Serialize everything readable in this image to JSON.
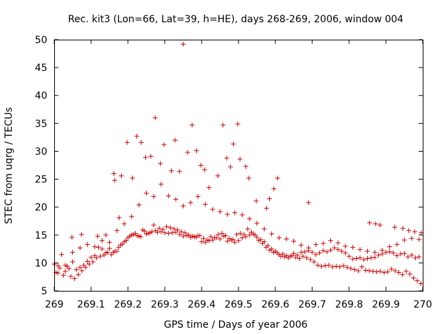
{
  "chart_data": {
    "type": "scatter",
    "title": "Rec. kit3 (Lon=66, Lat=39, h=HE), days 268-269, 2006, window 004",
    "xlabel": "GPS time / Days of year 2006",
    "ylabel": "STEC from uqrg / TECUs",
    "xlim": [
      269,
      270
    ],
    "ylim": [
      5,
      50
    ],
    "xticks": [
      "269",
      "269.1",
      "269.2",
      "269.3",
      "269.4",
      "269.5",
      "269.6",
      "269.7",
      "269.8",
      "269.9",
      "270"
    ],
    "yticks": [
      "5",
      "10",
      "15",
      "20",
      "25",
      "30",
      "35",
      "40",
      "45",
      "50"
    ],
    "grid": false,
    "marker": "plus",
    "color": "#cc0000",
    "series": [
      {
        "x": [
          269.0,
          269.01,
          269.02,
          269.03,
          269.04,
          269.05,
          269.06,
          269.07,
          269.08,
          269.09,
          269.1,
          269.11,
          269.12,
          269.13,
          269.14,
          269.15,
          269.16,
          269.17,
          269.18,
          269.19,
          269.2,
          269.21,
          269.22,
          269.23,
          269.24,
          269.25,
          269.26,
          269.27,
          269.28,
          269.29,
          269.3,
          269.31,
          269.32,
          269.33,
          269.34,
          269.35,
          269.36,
          269.37,
          269.38,
          269.39,
          269.4,
          269.41,
          269.42,
          269.43,
          269.44,
          269.45,
          269.46,
          269.47,
          269.48,
          269.49,
          269.5,
          269.51,
          269.52,
          269.53,
          269.54,
          269.55,
          269.56,
          269.57,
          269.58,
          269.59,
          269.6,
          269.61,
          269.62,
          269.63,
          269.64,
          269.65,
          269.66,
          269.67,
          269.68,
          269.69,
          269.7,
          269.71,
          269.72,
          269.73,
          269.74,
          269.75,
          269.76,
          269.77,
          269.78,
          269.79,
          269.8,
          269.81,
          269.82,
          269.83,
          269.84,
          269.85,
          269.86,
          269.87,
          269.88,
          269.89,
          269.9,
          269.91,
          269.92,
          269.93,
          269.94,
          269.95,
          269.96,
          269.97,
          269.98,
          269.99,
          269.005,
          269.015,
          269.025,
          269.035,
          269.045,
          269.055,
          269.065,
          269.075,
          269.085,
          269.095,
          269.105,
          269.115,
          269.125,
          269.135,
          269.145,
          269.155,
          269.165,
          269.175,
          269.185,
          269.195,
          269.205,
          269.215,
          269.225,
          269.235,
          269.245,
          269.255,
          269.265,
          269.275,
          269.285,
          269.295,
          269.305,
          269.315,
          269.325,
          269.335,
          269.345,
          269.355,
          269.365,
          269.375,
          269.385,
          269.395,
          269.405,
          269.415,
          269.425,
          269.435,
          269.445,
          269.455,
          269.465,
          269.475,
          269.485,
          269.495,
          269.505,
          269.515,
          269.525,
          269.535,
          269.545,
          269.555,
          269.565,
          269.575,
          269.585,
          269.595,
          269.605,
          269.615,
          269.625,
          269.635,
          269.645,
          269.655,
          269.665,
          269.675,
          269.685,
          269.695,
          269.705,
          269.715,
          269.725,
          269.735,
          269.745,
          269.755,
          269.765,
          269.775,
          269.785,
          269.795,
          269.805,
          269.815,
          269.825,
          269.835,
          269.845,
          269.855,
          269.865,
          269.875,
          269.885,
          269.895,
          269.905,
          269.915,
          269.925,
          269.935,
          269.945,
          269.955,
          269.965,
          269.975,
          269.985,
          269.995,
          269.01,
          269.03,
          269.05,
          269.07,
          269.09,
          269.11,
          269.13,
          269.15,
          269.17,
          269.19,
          269.21,
          269.23,
          269.25,
          269.27,
          269.29,
          269.31,
          269.33,
          269.35,
          269.37,
          269.39,
          269.41,
          269.43,
          269.45,
          269.47,
          269.49,
          269.51,
          269.53,
          269.55,
          269.57,
          269.59,
          269.61,
          269.63,
          269.65,
          269.67,
          269.69,
          269.71,
          269.73,
          269.75,
          269.77,
          269.79,
          269.81,
          269.83,
          269.85,
          269.87,
          269.89,
          269.91,
          269.93,
          269.95,
          269.97,
          269.99,
          269.162,
          269.182,
          269.198,
          269.212,
          269.224,
          269.236,
          269.248,
          269.262,
          269.274,
          269.288,
          269.298,
          269.318,
          269.328,
          269.34,
          269.35,
          269.362,
          269.374,
          269.386,
          269.398,
          269.408,
          269.42,
          269.444,
          269.458,
          269.468,
          269.478,
          269.486,
          269.498,
          269.504,
          269.52,
          269.528,
          269.548,
          269.576,
          269.584,
          269.596,
          269.606,
          269.69,
          269.856,
          269.872,
          269.884,
          269.924,
          269.946,
          269.962,
          269.978,
          269.996,
          269.048,
          269.074,
          269.118,
          269.14,
          269.164,
          269.176
        ],
        "y": [
          9.8,
          8.2,
          11.5,
          8.5,
          9.0,
          11.9,
          8.8,
          9.2,
          9.6,
          10.3,
          11.0,
          11.3,
          12.8,
          12.5,
          11.8,
          12.6,
          11.9,
          12.1,
          13.2,
          13.8,
          14.5,
          15.0,
          15.3,
          14.8,
          15.9,
          15.2,
          15.4,
          16.8,
          15.5,
          15.6,
          15.4,
          15.3,
          15.4,
          15.5,
          15.1,
          14.8,
          14.9,
          14.6,
          14.7,
          14.9,
          13.8,
          13.7,
          14.0,
          14.1,
          14.5,
          14.3,
          14.8,
          13.9,
          14.1,
          13.7,
          14.0,
          14.5,
          14.7,
          15.0,
          15.2,
          14.6,
          14.2,
          13.8,
          13.1,
          12.5,
          12.1,
          11.5,
          11.6,
          11.3,
          11.2,
          11.7,
          11.4,
          11.9,
          12.0,
          12.2,
          11.9,
          11.5,
          11.8,
          12.2,
          12.0,
          12.3,
          12.7,
          12.4,
          12.1,
          11.8,
          11.2,
          10.7,
          10.8,
          10.9,
          10.6,
          10.8,
          10.9,
          11.0,
          11.4,
          11.6,
          11.9,
          12.0,
          11.8,
          11.3,
          11.6,
          11.7,
          11.1,
          11.4,
          10.9,
          11.1,
          8.3,
          9.1,
          7.8,
          9.4,
          7.6,
          7.2,
          7.9,
          8.6,
          9.2,
          9.8,
          10.2,
          10.9,
          11.2,
          11.4,
          11.9,
          11.5,
          12.1,
          12.8,
          13.4,
          14.0,
          14.8,
          15.1,
          14.9,
          14.7,
          15.7,
          15.3,
          15.6,
          15.8,
          16.2,
          16.0,
          16.5,
          16.3,
          16.1,
          15.9,
          15.6,
          15.4,
          15.0,
          14.8,
          14.6,
          14.9,
          14.4,
          14.1,
          14.7,
          14.5,
          15.1,
          15.3,
          14.9,
          14.4,
          14.2,
          15.1,
          15.3,
          15.1,
          16.1,
          15.5,
          15.0,
          14.0,
          13.5,
          12.8,
          12.3,
          11.9,
          11.8,
          11.2,
          11.1,
          10.9,
          11.3,
          11.0,
          10.8,
          11.2,
          10.9,
          10.6,
          10.2,
          9.6,
          9.4,
          9.5,
          9.6,
          9.3,
          9.4,
          9.3,
          9.5,
          9.2,
          9.0,
          8.8,
          8.6,
          9.3,
          8.7,
          8.6,
          8.5,
          8.4,
          8.5,
          8.3,
          8.4,
          8.9,
          8.6,
          8.3,
          7.9,
          8.5,
          8.0,
          7.3,
          6.8,
          6.3,
          9.5,
          9.6,
          10.2,
          12.7,
          13.3,
          12.9,
          14.0,
          13.7,
          15.8,
          17.0,
          18.3,
          20.4,
          22.5,
          21.9,
          24.1,
          22.0,
          21.4,
          20.2,
          20.8,
          21.9,
          20.5,
          19.6,
          19.2,
          18.7,
          19.0,
          18.6,
          17.9,
          17.1,
          16.1,
          15.2,
          14.5,
          14.3,
          13.9,
          13.2,
          12.7,
          13.3,
          13.5,
          14.0,
          13.6,
          13.0,
          12.8,
          12.4,
          12.1,
          11.9,
          12.3,
          12.9,
          13.3,
          14.1,
          14.4,
          14.2,
          26.0,
          25.6,
          31.6,
          25.2,
          32.7,
          31.6,
          28.9,
          29.1,
          36.0,
          27.8,
          31.2,
          26.5,
          32.0,
          26.4,
          49.2,
          29.8,
          34.7,
          30.1,
          27.5,
          26.7,
          23.5,
          25.6,
          34.7,
          28.8,
          27.2,
          31.3,
          34.9,
          28.6,
          27.3,
          25.2,
          21.1,
          19.8,
          21.5,
          23.3,
          25.2,
          20.8,
          17.2,
          17.0,
          16.8,
          16.4,
          16.2,
          15.8,
          15.6,
          15.4,
          14.6,
          15.1,
          14.8,
          15.0,
          24.8,
          18.1
        ]
      }
    ]
  }
}
